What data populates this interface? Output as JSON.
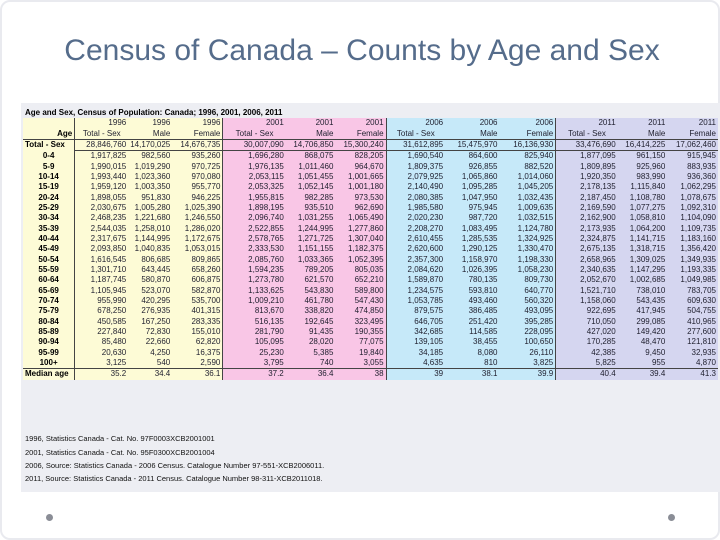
{
  "slide": {
    "title": "Census of Canada – Counts by Age and Sex"
  },
  "table": {
    "caption": "Age and Sex, Census of Population: Canada; 1996, 2001, 2006, 2011",
    "year_row": [
      "1996",
      "1996",
      "1996",
      "2001",
      "2001",
      "2001",
      "2006",
      "2006",
      "2006",
      "2011",
      "2011",
      "2011"
    ],
    "header_label": "Age",
    "measure_row": [
      "Total - Sex",
      "Male",
      "Female",
      "Total - Sex",
      "Male",
      "Female",
      "Total - Sex",
      "Male",
      "Female",
      "Total - Sex",
      "Male",
      "Female"
    ],
    "rows": [
      {
        "label": "Total - Sex",
        "values": [
          "28,846,760",
          "14,170,025",
          "14,676,735",
          "30,007,090",
          "14,706,850",
          "15,300,240",
          "31,612,895",
          "15,475,970",
          "16,136,930",
          "33,476,690",
          "16,414,225",
          "17,062,460"
        ]
      },
      {
        "label": "0-4",
        "values": [
          "1,917,825",
          "982,560",
          "935,260",
          "1,696,280",
          "868,075",
          "828,205",
          "1,690,540",
          "864,600",
          "825,940",
          "1,877,095",
          "961,150",
          "915,945"
        ]
      },
      {
        "label": "5-9",
        "values": [
          "1,990,015",
          "1,019,290",
          "970,725",
          "1,976,135",
          "1,011,460",
          "964,670",
          "1,809,375",
          "926,855",
          "882,520",
          "1,809,895",
          "925,960",
          "883,935"
        ]
      },
      {
        "label": "10-14",
        "values": [
          "1,993,440",
          "1,023,360",
          "970,080",
          "2,053,115",
          "1,051,455",
          "1,001,665",
          "2,079,925",
          "1,065,860",
          "1,014,060",
          "1,920,350",
          "983,990",
          "936,360"
        ]
      },
      {
        "label": "15-19",
        "values": [
          "1,959,120",
          "1,003,350",
          "955,770",
          "2,053,325",
          "1,052,145",
          "1,001,180",
          "2,140,490",
          "1,095,285",
          "1,045,205",
          "2,178,135",
          "1,115,840",
          "1,062,295"
        ]
      },
      {
        "label": "20-24",
        "values": [
          "1,898,055",
          "951,830",
          "946,225",
          "1,955,815",
          "982,285",
          "973,530",
          "2,080,385",
          "1,047,950",
          "1,032,435",
          "2,187,450",
          "1,108,780",
          "1,078,675"
        ]
      },
      {
        "label": "25-29",
        "values": [
          "2,030,675",
          "1,005,280",
          "1,025,390",
          "1,898,195",
          "935,510",
          "962,690",
          "1,985,580",
          "975,945",
          "1,009,635",
          "2,169,590",
          "1,077,275",
          "1,092,310"
        ]
      },
      {
        "label": "30-34",
        "values": [
          "2,468,235",
          "1,221,680",
          "1,246,550",
          "2,096,740",
          "1,031,255",
          "1,065,490",
          "2,020,230",
          "987,720",
          "1,032,515",
          "2,162,900",
          "1,058,810",
          "1,104,090"
        ]
      },
      {
        "label": "35-39",
        "values": [
          "2,544,035",
          "1,258,010",
          "1,286,020",
          "2,522,855",
          "1,244,995",
          "1,277,860",
          "2,208,270",
          "1,083,495",
          "1,124,780",
          "2,173,935",
          "1,064,200",
          "1,109,735"
        ]
      },
      {
        "label": "40-44",
        "values": [
          "2,317,675",
          "1,144,995",
          "1,172,675",
          "2,578,765",
          "1,271,725",
          "1,307,040",
          "2,610,455",
          "1,285,535",
          "1,324,925",
          "2,324,875",
          "1,141,715",
          "1,183,160"
        ]
      },
      {
        "label": "45-49",
        "values": [
          "2,093,850",
          "1,040,835",
          "1,053,015",
          "2,333,530",
          "1,151,155",
          "1,182,375",
          "2,620,600",
          "1,290,125",
          "1,330,470",
          "2,675,135",
          "1,318,715",
          "1,356,420"
        ]
      },
      {
        "label": "50-54",
        "values": [
          "1,616,545",
          "806,685",
          "809,865",
          "2,085,760",
          "1,033,365",
          "1,052,395",
          "2,357,300",
          "1,158,970",
          "1,198,330",
          "2,658,965",
          "1,309,025",
          "1,349,935"
        ]
      },
      {
        "label": "55-59",
        "values": [
          "1,301,710",
          "643,445",
          "658,260",
          "1,594,235",
          "789,205",
          "805,035",
          "2,084,620",
          "1,026,395",
          "1,058,230",
          "2,340,635",
          "1,147,295",
          "1,193,335"
        ]
      },
      {
        "label": "60-64",
        "values": [
          "1,187,745",
          "580,870",
          "606,875",
          "1,273,780",
          "621,570",
          "652,210",
          "1,589,870",
          "780,135",
          "809,730",
          "2,052,670",
          "1,002,685",
          "1,049,985"
        ]
      },
      {
        "label": "65-69",
        "values": [
          "1,105,945",
          "523,070",
          "582,870",
          "1,133,625",
          "543,830",
          "589,800",
          "1,234,575",
          "593,810",
          "640,770",
          "1,521,710",
          "738,010",
          "783,705"
        ]
      },
      {
        "label": "70-74",
        "values": [
          "955,990",
          "420,295",
          "535,700",
          "1,009,210",
          "461,780",
          "547,430",
          "1,053,785",
          "493,460",
          "560,320",
          "1,158,060",
          "543,435",
          "609,630"
        ]
      },
      {
        "label": "75-79",
        "values": [
          "678,250",
          "276,935",
          "401,315",
          "813,670",
          "338,820",
          "474,850",
          "879,575",
          "386,485",
          "493,095",
          "922,695",
          "417,945",
          "504,755"
        ]
      },
      {
        "label": "80-84",
        "values": [
          "450,585",
          "167,250",
          "283,335",
          "516,135",
          "192,645",
          "323,495",
          "646,705",
          "251,420",
          "395,285",
          "710,050",
          "299,085",
          "410,965"
        ]
      },
      {
        "label": "85-89",
        "values": [
          "227,840",
          "72,830",
          "155,010",
          "281,790",
          "91,435",
          "190,355",
          "342,685",
          "114,585",
          "228,095",
          "427,020",
          "149,420",
          "277,600"
        ]
      },
      {
        "label": "90-94",
        "values": [
          "85,480",
          "22,660",
          "62,820",
          "105,095",
          "28,020",
          "77,075",
          "139,105",
          "38,455",
          "100,650",
          "170,285",
          "48,470",
          "121,810"
        ]
      },
      {
        "label": "95-99",
        "values": [
          "20,630",
          "4,250",
          "16,375",
          "25,230",
          "5,385",
          "19,840",
          "34,185",
          "8,080",
          "26,110",
          "42,385",
          "9,450",
          "32,935"
        ]
      },
      {
        "label": "100+",
        "values": [
          "3,125",
          "540",
          "2,590",
          "3,795",
          "740",
          "3,055",
          "4,635",
          "810",
          "3,825",
          "5,825",
          "955",
          "4,870"
        ]
      },
      {
        "label": "Median age",
        "values": [
          "35.2",
          "34.4",
          "36.1",
          "37.2",
          "36.4",
          "38",
          "39",
          "38.1",
          "39.9",
          "40.4",
          "39.4",
          "41.3"
        ]
      }
    ]
  },
  "sources": [
    "1996, Statistics Canada - Cat. No. 97F0003XCB2001001",
    "2001, Statistics Canada - Cat. No. 95F0300XCB2001004",
    "2006, Source: Statistics Canada - 2006 Census. Catalogue Number 97-551-XCB2006011.",
    "2011, Source: Statistics Canada - 2011 Census. Catalogue Number 98-311-XCB2011018."
  ],
  "colors": {
    "y1996": "#fdfbd6",
    "y2001": "#f9c6e6",
    "y2006": "#c6e9f9",
    "y2011": "#d5d6f0",
    "title": "#556c8b"
  }
}
